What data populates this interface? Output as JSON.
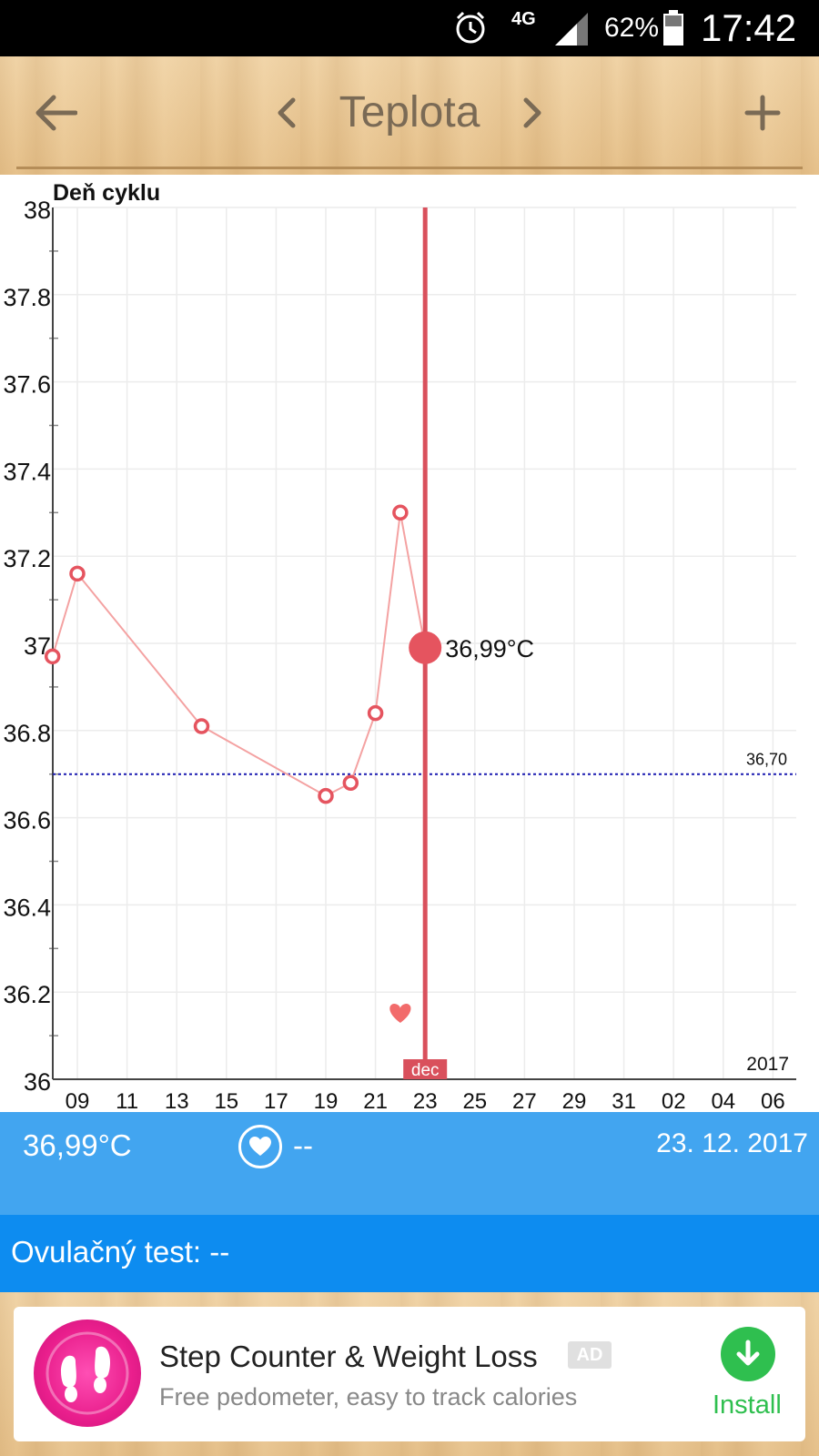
{
  "status_bar": {
    "network": "4G",
    "battery": "62%",
    "time": "17:42"
  },
  "header": {
    "title": "Teplota"
  },
  "chart_data": {
    "type": "line",
    "title": "",
    "ylabel": "Deň cyklu",
    "xlabel": "",
    "ylim": [
      36,
      38
    ],
    "y_ticks": [
      "36",
      "36.2",
      "36.4",
      "36.6",
      "36.8",
      "37",
      "37.2",
      "37.4",
      "37.6",
      "37.8",
      "38"
    ],
    "x_ticks": [
      "09",
      "11",
      "13",
      "15",
      "17",
      "19",
      "21",
      "23",
      "25",
      "27",
      "29",
      "31",
      "02",
      "04",
      "06"
    ],
    "series": [
      {
        "x": [
          "2017-12-08",
          "2017-12-09",
          "2017-12-14",
          "2017-12-19",
          "2017-12-20",
          "2017-12-21",
          "2017-12-22",
          "2017-12-23"
        ],
        "y": [
          36.97,
          37.16,
          36.81,
          36.65,
          36.68,
          36.84,
          37.3,
          36.99
        ]
      }
    ],
    "reference_line": {
      "value": 36.7,
      "label": "36,70"
    },
    "selected": {
      "x": "2017-12-23",
      "label": "36,99°C",
      "month_label": "dec"
    },
    "heart_marker": {
      "x": "2017-12-22"
    },
    "year_label": "2017",
    "grid": true,
    "colors": {
      "line": "#f4a2a2",
      "point": "#e5545f",
      "cursor": "#d9505c",
      "reference": "#1a1ab0"
    }
  },
  "info": {
    "temperature": "36,99°C",
    "heart_value": "--",
    "date": "23. 12. 2017"
  },
  "ovulation": {
    "text": "Ovulačný test: --"
  },
  "ad": {
    "title": "Step Counter & Weight Loss",
    "badge": "AD",
    "subtitle": "Free pedometer, easy to track calories",
    "install": "Install"
  }
}
